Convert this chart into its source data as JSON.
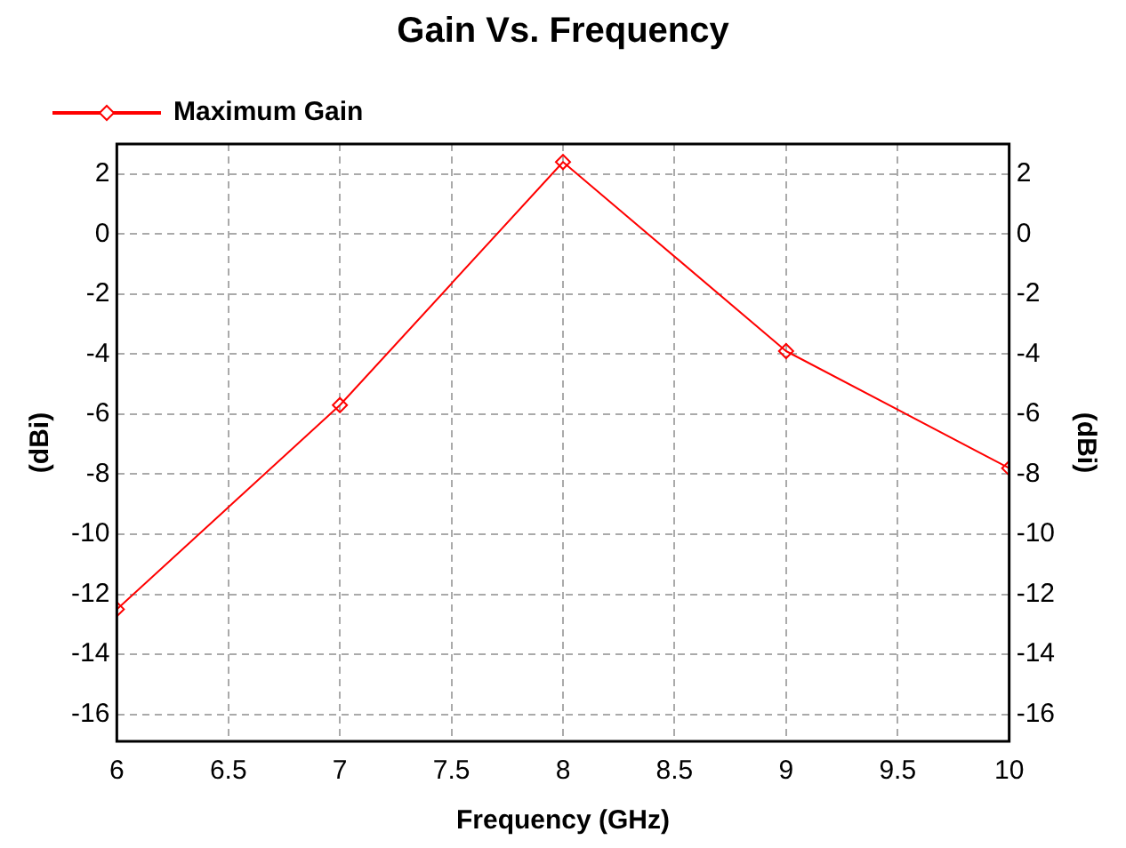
{
  "chart_data": {
    "type": "line",
    "title": "Gain Vs. Frequency",
    "xlabel": "Frequency (GHz)",
    "ylabel": "(dBi)",
    "y2label": "(dBi)",
    "x": [
      6,
      7,
      8,
      9,
      10
    ],
    "series": [
      {
        "name": "Maximum Gain",
        "color": "#ff0000",
        "values": [
          -12.5,
          -5.7,
          2.4,
          -3.9,
          -7.8
        ]
      }
    ],
    "xlim": [
      6,
      10
    ],
    "xticks": [
      6,
      6.5,
      7,
      7.5,
      8,
      8.5,
      9,
      9.5,
      10
    ],
    "ylim": [
      -16.9,
      3
    ],
    "yticks": [
      -16,
      -14,
      -12,
      -10,
      -8,
      -6,
      -4,
      -2,
      0,
      2
    ],
    "y2lim": [
      -16.9,
      3
    ],
    "y2ticks": [
      -16,
      -14,
      -12,
      -10,
      -8,
      -6,
      -4,
      -2,
      0,
      2
    ],
    "grid": true,
    "legend": "top left",
    "marker": "diamond",
    "line_style": "solid"
  }
}
